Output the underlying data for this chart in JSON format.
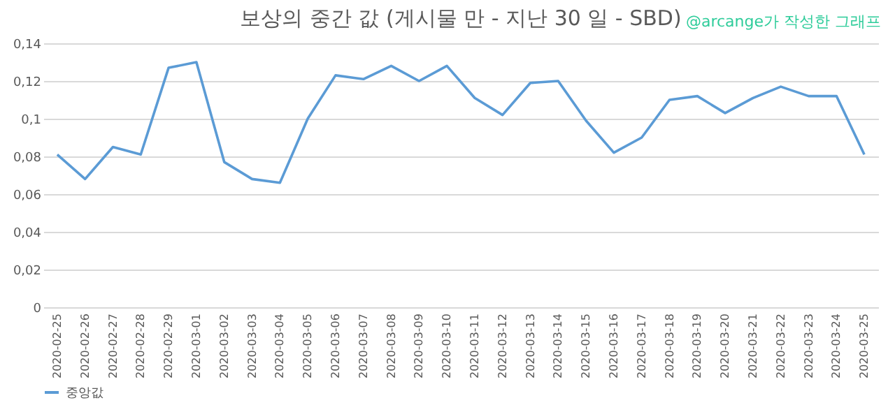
{
  "chart_data": {
    "type": "line",
    "title": "보상의 중간 값 (게시물 만 - 지난 30 일 - SBD)",
    "annotations": [
      "@arcange가 작성한 그래프"
    ],
    "categories": [
      "2020-02-25",
      "2020-02-26",
      "2020-02-27",
      "2020-02-28",
      "2020-02-29",
      "2020-03-01",
      "2020-03-02",
      "2020-03-03",
      "2020-03-04",
      "2020-03-05",
      "2020-03-06",
      "2020-03-07",
      "2020-03-08",
      "2020-03-09",
      "2020-03-10",
      "2020-03-11",
      "2020-03-12",
      "2020-03-13",
      "2020-03-14",
      "2020-03-15",
      "2020-03-16",
      "2020-03-17",
      "2020-03-18",
      "2020-03-19",
      "2020-03-20",
      "2020-03-21",
      "2020-03-22",
      "2020-03-23",
      "2020-03-24",
      "2020-03-25"
    ],
    "series": [
      {
        "name": "중앙값",
        "color": "#5b9bd5",
        "values": [
          0.081,
          0.068,
          0.085,
          0.081,
          0.127,
          0.13,
          0.077,
          0.068,
          0.066,
          0.1,
          0.123,
          0.121,
          0.128,
          0.12,
          0.128,
          0.111,
          0.102,
          0.119,
          0.12,
          0.099,
          0.082,
          0.09,
          0.11,
          0.112,
          0.103,
          0.111,
          0.117,
          0.112,
          0.112,
          0.081
        ]
      }
    ],
    "ylim": [
      0,
      0.14
    ],
    "yticks": [
      {
        "value": 0,
        "label": "0"
      },
      {
        "value": 0.02,
        "label": "0,02"
      },
      {
        "value": 0.04,
        "label": "0,04"
      },
      {
        "value": 0.06,
        "label": "0,06"
      },
      {
        "value": 0.08,
        "label": "0,08"
      },
      {
        "value": 0.1,
        "label": "0,1"
      },
      {
        "value": 0.12,
        "label": "0,12"
      },
      {
        "value": 0.14,
        "label": "0,14"
      }
    ],
    "grid": "y",
    "legend": "bottom",
    "marker": "none",
    "line_style": "solid"
  }
}
